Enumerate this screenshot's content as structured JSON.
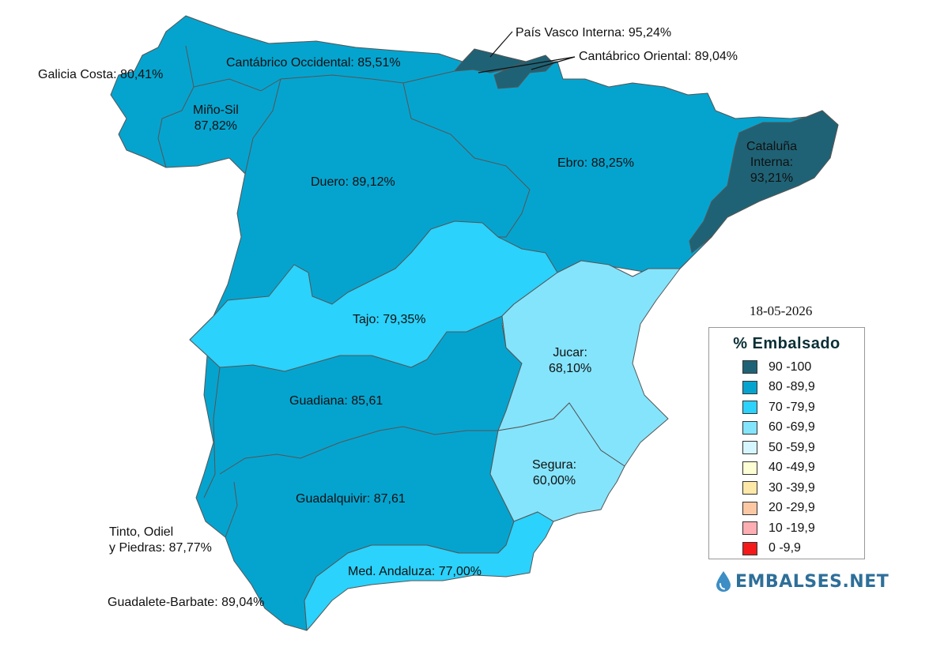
{
  "date": "18-05-2026",
  "legend": {
    "title": "% Embalsado",
    "items": [
      {
        "label": "90 -100",
        "color": "#1f6275"
      },
      {
        "label": "80 -89,9",
        "color": "#05a4cf"
      },
      {
        "label": "70 -79,9",
        "color": "#2bd2fb"
      },
      {
        "label": "60 -69,9",
        "color": "#84e4fc"
      },
      {
        "label": "50 -59,9",
        "color": "#d5f6fe"
      },
      {
        "label": "40 -49,9",
        "color": "#fefed4"
      },
      {
        "label": "30 -39,9",
        "color": "#fde8a8"
      },
      {
        "label": "20 -29,9",
        "color": "#fcc8a4"
      },
      {
        "label": "10 -19,9",
        "color": "#fcaeb2"
      },
      {
        "label": "0 -9,9",
        "color": "#f41a1a"
      }
    ]
  },
  "brand": {
    "name": "EMBALSES.NET",
    "icon": "water-drop-icon"
  },
  "basins": [
    {
      "id": "galicia-costa",
      "label": "Galicia Costa: 80,41%",
      "value": 80.41,
      "color": "#05a4cf"
    },
    {
      "id": "mino-sil",
      "label_lines": [
        "Miño-Sil",
        "87,82%"
      ],
      "value": 87.82,
      "color": "#05a4cf"
    },
    {
      "id": "cantabrico-occidental",
      "label": "Cantábrico Occidental: 85,51%",
      "value": 85.51,
      "color": "#05a4cf"
    },
    {
      "id": "pais-vasco-interna",
      "label": "País Vasco Interna: 95,24%",
      "value": 95.24,
      "color": "#1f6275"
    },
    {
      "id": "cantabrico-oriental",
      "label": "Cantábrico Oriental: 89,04%",
      "value": 89.04,
      "color": "#05a4cf"
    },
    {
      "id": "duero",
      "label": "Duero: 89,12%",
      "value": 89.12,
      "color": "#05a4cf"
    },
    {
      "id": "ebro",
      "label": "Ebro: 88,25%",
      "value": 88.25,
      "color": "#05a4cf"
    },
    {
      "id": "cataluna-interna",
      "label_lines": [
        "Cataluña",
        "Interna:",
        "93,21%"
      ],
      "value": 93.21,
      "color": "#1f6275"
    },
    {
      "id": "tajo",
      "label": "Tajo: 79,35%",
      "value": 79.35,
      "color": "#2bd2fb"
    },
    {
      "id": "jucar",
      "label_lines": [
        "Jucar:",
        "68,10%"
      ],
      "value": 68.1,
      "color": "#84e4fc"
    },
    {
      "id": "guadiana",
      "label": "Guadiana: 85,61",
      "value": 85.61,
      "color": "#05a4cf"
    },
    {
      "id": "segura",
      "label_lines": [
        "Segura:",
        "60,00%"
      ],
      "value": 60.0,
      "color": "#84e4fc"
    },
    {
      "id": "guadalquivir",
      "label": "Guadalquivir: 87,61",
      "value": 87.61,
      "color": "#05a4cf"
    },
    {
      "id": "tinto-odiel-piedras",
      "label_lines": [
        "Tinto, Odiel",
        "y Piedras: 87,77%"
      ],
      "value": 87.77,
      "color": "#05a4cf"
    },
    {
      "id": "med-andaluza",
      "label": "Med. Andaluza: 77,00%",
      "value": 77.0,
      "color": "#2bd2fb"
    },
    {
      "id": "guadalete-barbate",
      "label": "Guadalete-Barbate: 89,04%",
      "value": 89.04,
      "color": "#05a4cf"
    }
  ]
}
